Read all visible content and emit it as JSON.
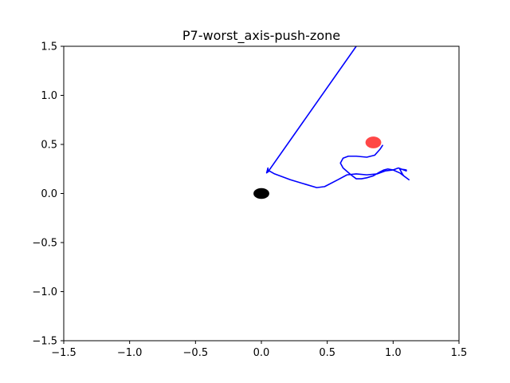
{
  "chart_data": {
    "type": "line",
    "title": "P7-worst_axis-push-zone",
    "xlabel": "",
    "ylabel": "",
    "xlim": [
      -1.5,
      1.5
    ],
    "ylim": [
      -1.5,
      1.5
    ],
    "xticks": [
      -1.5,
      -1.0,
      -0.5,
      0.0,
      0.5,
      1.0,
      1.5
    ],
    "xtick_labels": [
      "−1.5",
      "−1.0",
      "−0.5",
      "0.0",
      "0.5",
      "1.0",
      "1.5"
    ],
    "yticks": [
      -1.5,
      -1.0,
      -0.5,
      0.0,
      0.5,
      1.0,
      1.5
    ],
    "ytick_labels": [
      "−1.5",
      "−1.0",
      "−0.5",
      "0.0",
      "0.5",
      "1.0",
      "1.5"
    ],
    "grid": false,
    "series": [
      {
        "color": "#0000ff",
        "points": [
          [
            0.72,
            1.5
          ],
          [
            0.05,
            0.22
          ],
          [
            0.05,
            0.26
          ],
          [
            0.04,
            0.21
          ],
          [
            0.06,
            0.23
          ],
          [
            0.1,
            0.2
          ],
          [
            0.22,
            0.14
          ],
          [
            0.42,
            0.06
          ],
          [
            0.48,
            0.07
          ],
          [
            0.58,
            0.14
          ],
          [
            0.65,
            0.19
          ],
          [
            0.72,
            0.2
          ],
          [
            0.8,
            0.19
          ],
          [
            0.88,
            0.2
          ],
          [
            0.94,
            0.23
          ],
          [
            1.0,
            0.24
          ],
          [
            1.05,
            0.21
          ],
          [
            1.12,
            0.14
          ],
          [
            1.08,
            0.18
          ],
          [
            1.07,
            0.2
          ],
          [
            1.05,
            0.25
          ],
          [
            1.1,
            0.24
          ],
          [
            1.1,
            0.23
          ],
          [
            1.04,
            0.26
          ],
          [
            1.0,
            0.24
          ],
          [
            0.96,
            0.25
          ],
          [
            0.93,
            0.24
          ],
          [
            0.9,
            0.22
          ],
          [
            0.85,
            0.18
          ],
          [
            0.8,
            0.16
          ],
          [
            0.76,
            0.15
          ],
          [
            0.72,
            0.15
          ],
          [
            0.68,
            0.19
          ],
          [
            0.62,
            0.26
          ],
          [
            0.6,
            0.31
          ],
          [
            0.62,
            0.36
          ],
          [
            0.66,
            0.38
          ],
          [
            0.72,
            0.38
          ],
          [
            0.8,
            0.37
          ],
          [
            0.86,
            0.39
          ],
          [
            0.9,
            0.45
          ],
          [
            0.92,
            0.49
          ]
        ]
      }
    ],
    "markers": [
      {
        "shape": "ellipse",
        "x": 0.0,
        "y": 0.0,
        "rx": 0.06,
        "ry": 0.055,
        "color": "#000000"
      },
      {
        "shape": "ellipse",
        "x": 0.85,
        "y": 0.52,
        "rx": 0.06,
        "ry": 0.06,
        "color": "#ff0000",
        "opacity": 0.72
      }
    ]
  }
}
